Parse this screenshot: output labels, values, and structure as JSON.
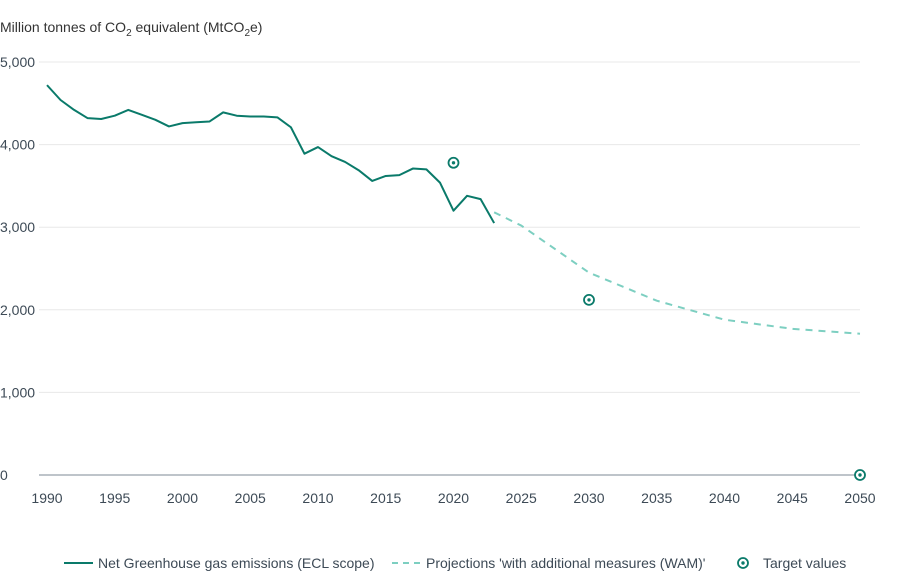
{
  "chart_data": {
    "type": "line",
    "ylabel": {
      "prefix": "Million tonnes of CO",
      "sub1": "2",
      "middle": " equivalent (MtCO",
      "sub2": "2",
      "suffix": "e)"
    },
    "xlim": [
      1990,
      2050
    ],
    "ylim": [
      0,
      5000
    ],
    "x_ticks": [
      1990,
      1995,
      2000,
      2005,
      2010,
      2015,
      2020,
      2025,
      2030,
      2035,
      2040,
      2045,
      2050
    ],
    "x_tick_labels": [
      "1990",
      "1995",
      "2000",
      "2005",
      "2010",
      "2015",
      "2020",
      "2025",
      "2030",
      "2035",
      "2040",
      "2045",
      "2050"
    ],
    "y_ticks": [
      0,
      1000,
      2000,
      3000,
      4000,
      5000
    ],
    "y_tick_labels": [
      "0",
      "1,000",
      "2,000",
      "3,000",
      "4,000",
      "5,000"
    ],
    "grid": true,
    "legend_position": "bottom-center",
    "series": [
      {
        "name": "Net Greenhouse gas emissions (ECL scope)",
        "style": "solid",
        "color": "#0a7a6a",
        "x": [
          1990,
          1991,
          1992,
          1993,
          1994,
          1995,
          1996,
          1997,
          1998,
          1999,
          2000,
          2001,
          2002,
          2003,
          2004,
          2005,
          2006,
          2007,
          2008,
          2009,
          2010,
          2011,
          2012,
          2013,
          2014,
          2015,
          2016,
          2017,
          2018,
          2019,
          2020,
          2021,
          2022,
          2023
        ],
        "values": [
          4720,
          4540,
          4420,
          4320,
          4310,
          4350,
          4420,
          4360,
          4300,
          4220,
          4260,
          4270,
          4280,
          4390,
          4350,
          4340,
          4340,
          4330,
          4210,
          3890,
          3970,
          3860,
          3790,
          3690,
          3560,
          3620,
          3630,
          3710,
          3700,
          3540,
          3200,
          3380,
          3340,
          3050
        ]
      },
      {
        "name": "Projections 'with additional measures (WAM)'",
        "style": "dashed",
        "color": "#7dcfc1",
        "x": [
          2023,
          2025,
          2030,
          2035,
          2040,
          2045,
          2050
        ],
        "values": [
          3180,
          3020,
          2450,
          2110,
          1880,
          1770,
          1710
        ]
      },
      {
        "name": "Target values",
        "style": "marker",
        "color": "#0a7a6a",
        "x": [
          2020,
          2030,
          2050
        ],
        "values": [
          3780,
          2120,
          0
        ]
      }
    ]
  }
}
